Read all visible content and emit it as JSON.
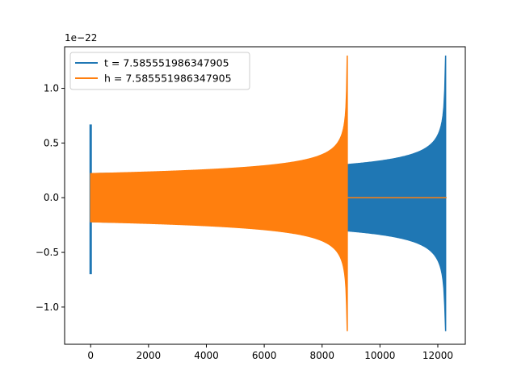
{
  "chart_data": {
    "type": "line",
    "title": "",
    "xlabel": "",
    "ylabel": "",
    "y_offset_label": "1e−22",
    "xlim": [
      -900,
      12950
    ],
    "ylim": [
      -1.34,
      1.38
    ],
    "x_ticks": [
      0,
      2000,
      4000,
      6000,
      8000,
      10000,
      12000
    ],
    "x_tick_labels": [
      "0",
      "2000",
      "4000",
      "6000",
      "8000",
      "10000",
      "12000"
    ],
    "y_ticks": [
      -1.0,
      -0.5,
      0.0,
      0.5,
      1.0
    ],
    "y_tick_labels": [
      "−1.0",
      "−0.5",
      "0.0",
      "0.5",
      "1.0"
    ],
    "grid": false,
    "legend_position": "top-left",
    "series": [
      {
        "name": "t = 7.585551986347905",
        "color": "#1f77b4",
        "shape": "chirp-envelope",
        "x_start": 0,
        "x_end": 12300,
        "x_peak": 12270,
        "spike_at_start": {
          "x": 0,
          "max": 0.67,
          "min": -0.7
        },
        "envelope_at_start": 0.22,
        "envelope_peak": 1.3,
        "envelope_trough": -1.22
      },
      {
        "name": "h = 7.585551986347905",
        "color": "#ff7f0e",
        "shape": "chirp-envelope",
        "x_start": 0,
        "x_end": 12300,
        "x_peak": 8870,
        "envelope_at_start": 0.22,
        "envelope_peak": 1.3,
        "envelope_trough": -1.22,
        "flat_after_peak": 0.0
      }
    ]
  }
}
